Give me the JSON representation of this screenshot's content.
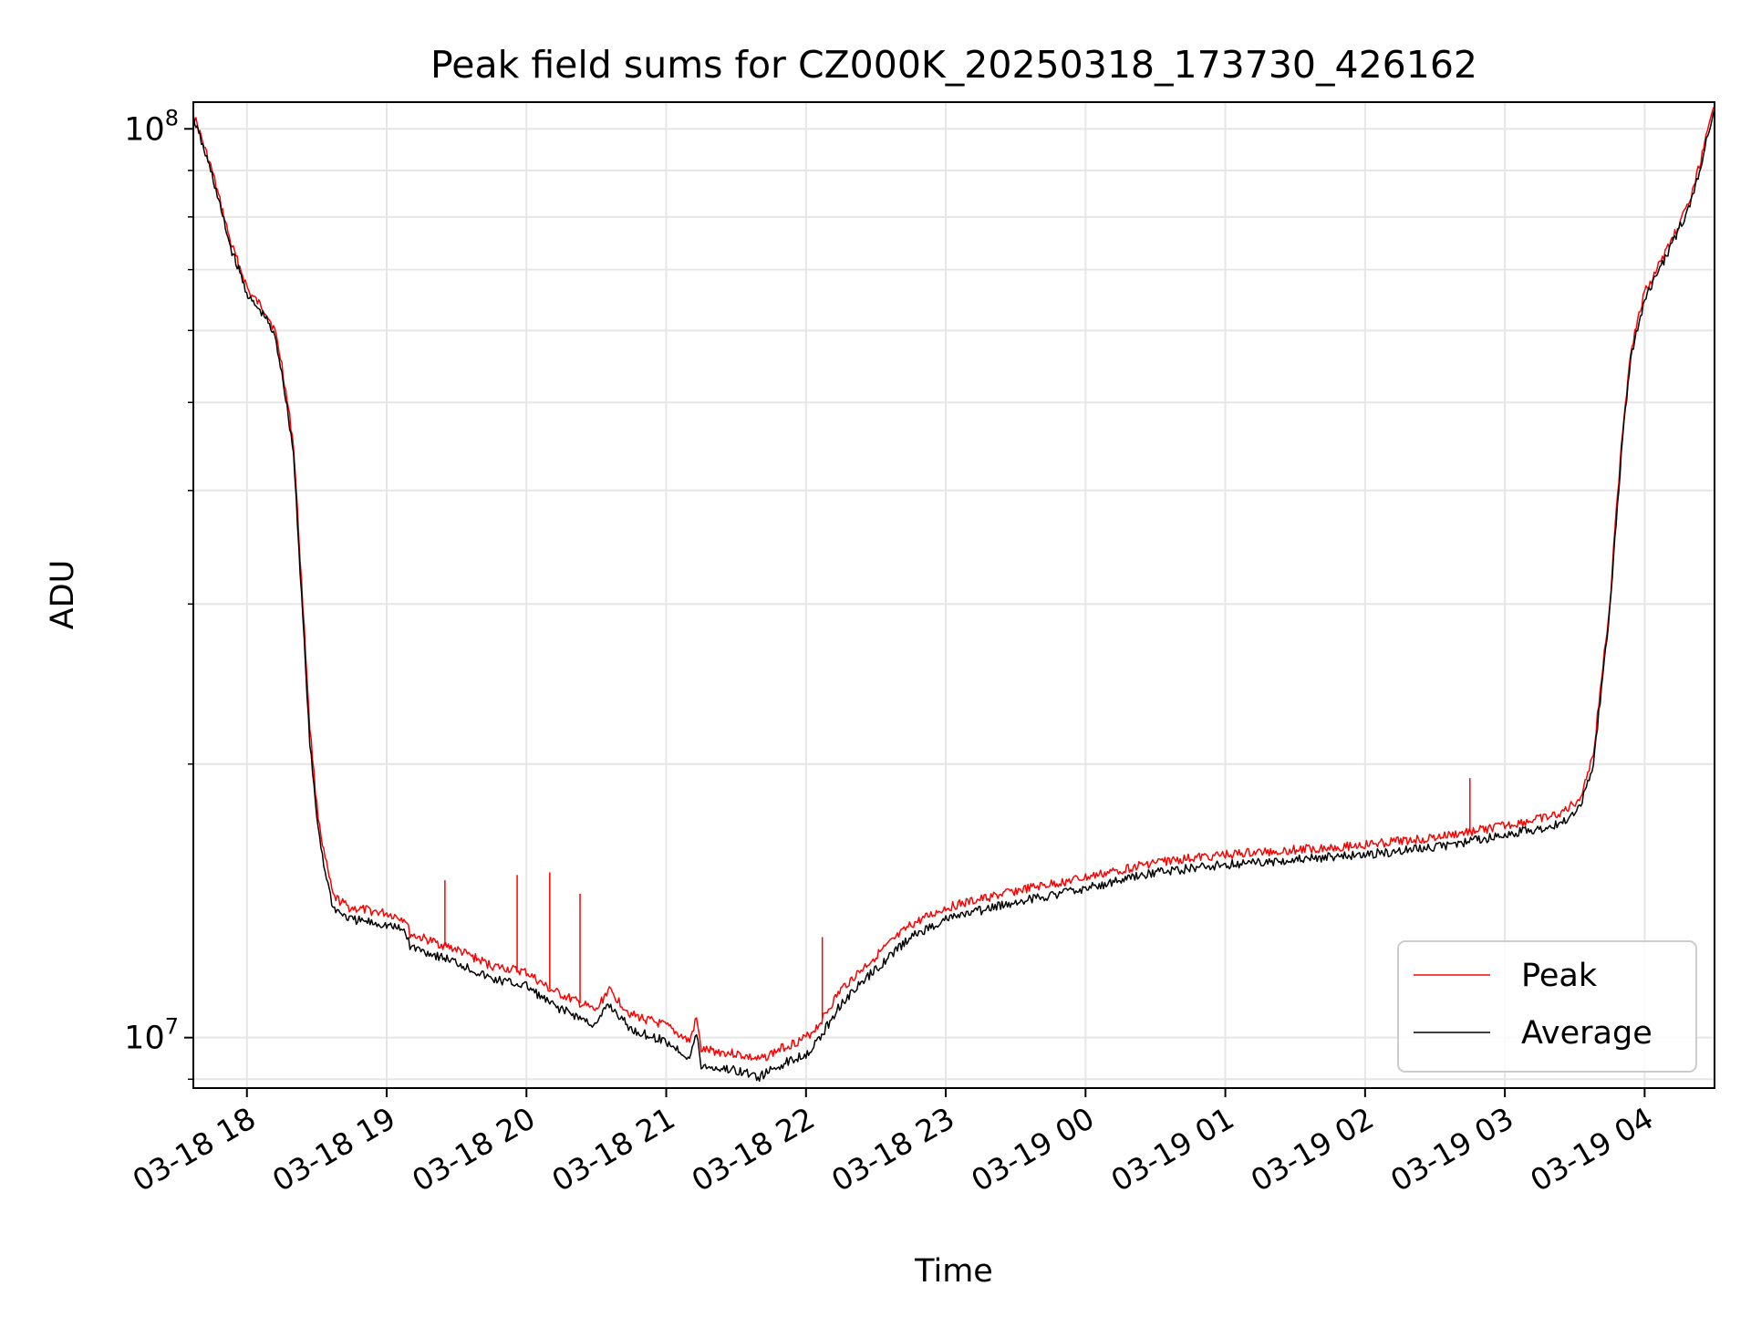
{
  "chart_data": {
    "type": "line",
    "title": "Peak field sums for CZ000K_20250318_173730_426162",
    "xlabel": "Time",
    "ylabel": "ADU",
    "yscale": "log",
    "ylim": [
      8800000,
      107000000
    ],
    "xlim": [
      "2025-03-18 17:37",
      "2025-03-19 04:30"
    ],
    "grid": true,
    "legend": "lower right",
    "x_ticks": [
      "03-18 18",
      "03-18 19",
      "03-18 20",
      "03-18 21",
      "03-18 22",
      "03-18 23",
      "03-19 00",
      "03-19 01",
      "03-19 02",
      "03-19 03",
      "03-19 04"
    ],
    "y_tick_labels": [
      {
        "value": 10000000,
        "base": "10",
        "exp": "7"
      },
      {
        "value": 100000000,
        "base": "10",
        "exp": "8"
      }
    ],
    "series": [
      {
        "name": "Peak",
        "color": "#ff0000",
        "x": [
          "2025-03-18 17:37",
          "2025-03-18 17:45",
          "2025-03-18 17:53",
          "2025-03-18 18:01",
          "2025-03-18 18:08",
          "2025-03-18 18:12",
          "2025-03-18 18:15",
          "2025-03-18 18:20",
          "2025-03-18 18:24",
          "2025-03-18 18:27",
          "2025-03-18 18:30",
          "2025-03-18 18:33",
          "2025-03-18 18:37",
          "2025-03-18 18:44",
          "2025-03-18 19:00",
          "2025-03-18 19:08",
          "2025-03-18 19:10",
          "2025-03-18 19:30",
          "2025-03-18 19:45",
          "2025-03-18 20:00",
          "2025-03-18 20:10",
          "2025-03-18 20:20",
          "2025-03-18 20:30",
          "2025-03-18 20:35",
          "2025-03-18 20:45",
          "2025-03-18 21:00",
          "2025-03-18 21:10",
          "2025-03-18 21:13",
          "2025-03-18 21:15",
          "2025-03-18 21:30",
          "2025-03-18 21:40",
          "2025-03-18 21:50",
          "2025-03-18 22:00",
          "2025-03-18 22:05",
          "2025-03-18 22:15",
          "2025-03-18 22:30",
          "2025-03-18 22:45",
          "2025-03-18 23:00",
          "2025-03-18 23:30",
          "2025-03-19 00:00",
          "2025-03-19 00:30",
          "2025-03-19 01:00",
          "2025-03-19 01:30",
          "2025-03-19 02:00",
          "2025-03-19 02:30",
          "2025-03-19 03:00",
          "2025-03-19 03:10",
          "2025-03-19 03:20",
          "2025-03-19 03:26",
          "2025-03-19 03:32",
          "2025-03-19 03:38",
          "2025-03-19 03:45",
          "2025-03-19 03:50",
          "2025-03-19 03:54",
          "2025-03-19 04:00",
          "2025-03-19 04:10",
          "2025-03-19 04:20",
          "2025-03-19 04:30"
        ],
        "values": [
          104000000,
          90000000,
          75000000,
          66000000,
          63000000,
          60000000,
          55000000,
          45000000,
          30000000,
          22000000,
          18000000,
          16000000,
          14300000,
          13900000,
          13700000,
          13500000,
          13000000,
          12500000,
          12000000,
          11800000,
          11300000,
          11000000,
          10700000,
          11300000,
          10600000,
          10300000,
          9900000,
          10500000,
          9700000,
          9600000,
          9450000,
          9750000,
          10000000,
          10300000,
          11300000,
          12300000,
          13300000,
          13900000,
          14500000,
          15000000,
          15600000,
          15900000,
          16100000,
          16300000,
          16600000,
          17100000,
          17300000,
          17500000,
          17800000,
          18300000,
          20500000,
          30000000,
          45000000,
          57000000,
          66000000,
          74000000,
          84000000,
          106000000
        ]
      },
      {
        "name": "Average",
        "color": "#000000",
        "x": [
          "2025-03-18 17:37",
          "2025-03-18 17:45",
          "2025-03-18 17:53",
          "2025-03-18 18:01",
          "2025-03-18 18:08",
          "2025-03-18 18:12",
          "2025-03-18 18:15",
          "2025-03-18 18:20",
          "2025-03-18 18:24",
          "2025-03-18 18:27",
          "2025-03-18 18:30",
          "2025-03-18 18:33",
          "2025-03-18 18:37",
          "2025-03-18 18:44",
          "2025-03-18 19:00",
          "2025-03-18 19:08",
          "2025-03-18 19:10",
          "2025-03-18 19:30",
          "2025-03-18 19:45",
          "2025-03-18 20:00",
          "2025-03-18 20:10",
          "2025-03-18 20:20",
          "2025-03-18 20:30",
          "2025-03-18 20:35",
          "2025-03-18 20:45",
          "2025-03-18 21:00",
          "2025-03-18 21:10",
          "2025-03-18 21:13",
          "2025-03-18 21:15",
          "2025-03-18 21:30",
          "2025-03-18 21:40",
          "2025-03-18 21:50",
          "2025-03-18 22:00",
          "2025-03-18 22:05",
          "2025-03-18 22:15",
          "2025-03-18 22:30",
          "2025-03-18 22:45",
          "2025-03-18 23:00",
          "2025-03-18 23:30",
          "2025-03-19 00:00",
          "2025-03-19 00:30",
          "2025-03-19 01:00",
          "2025-03-19 01:30",
          "2025-03-19 02:00",
          "2025-03-19 02:30",
          "2025-03-19 03:00",
          "2025-03-19 03:10",
          "2025-03-19 03:20",
          "2025-03-19 03:26",
          "2025-03-19 03:32",
          "2025-03-19 03:38",
          "2025-03-19 03:45",
          "2025-03-19 03:50",
          "2025-03-19 03:54",
          "2025-03-19 04:00",
          "2025-03-19 04:10",
          "2025-03-19 04:20",
          "2025-03-19 04:30"
        ],
        "values": [
          103000000,
          89000000,
          74000000,
          65000000,
          62000000,
          59000000,
          54000000,
          44000000,
          29000000,
          21000000,
          17500000,
          15500000,
          13900000,
          13500000,
          13300000,
          13100000,
          12600000,
          12100000,
          11600000,
          11400000,
          10900000,
          10600000,
          10300000,
          10900000,
          10200000,
          9900000,
          9500000,
          10100000,
          9300000,
          9200000,
          9050000,
          9350000,
          9600000,
          9900000,
          10900000,
          11900000,
          12900000,
          13500000,
          14100000,
          14600000,
          15200000,
          15500000,
          15700000,
          15900000,
          16200000,
          16700000,
          16900000,
          17100000,
          17400000,
          17900000,
          20000000,
          29500000,
          44000000,
          56000000,
          65000000,
          73000000,
          83000000,
          105000000
        ]
      }
    ],
    "spikes": [
      {
        "series": "Peak",
        "x": "2025-03-18 19:25",
        "value": 14900000
      },
      {
        "series": "Peak",
        "x": "2025-03-18 19:56",
        "value": 15100000
      },
      {
        "series": "Peak",
        "x": "2025-03-18 20:10",
        "value": 15200000
      },
      {
        "series": "Peak",
        "x": "2025-03-18 20:23",
        "value": 14400000
      },
      {
        "series": "Peak",
        "x": "2025-03-18 22:07",
        "value": 12900000
      },
      {
        "series": "Peak",
        "x": "2025-03-19 02:45",
        "value": 19300000
      }
    ]
  }
}
